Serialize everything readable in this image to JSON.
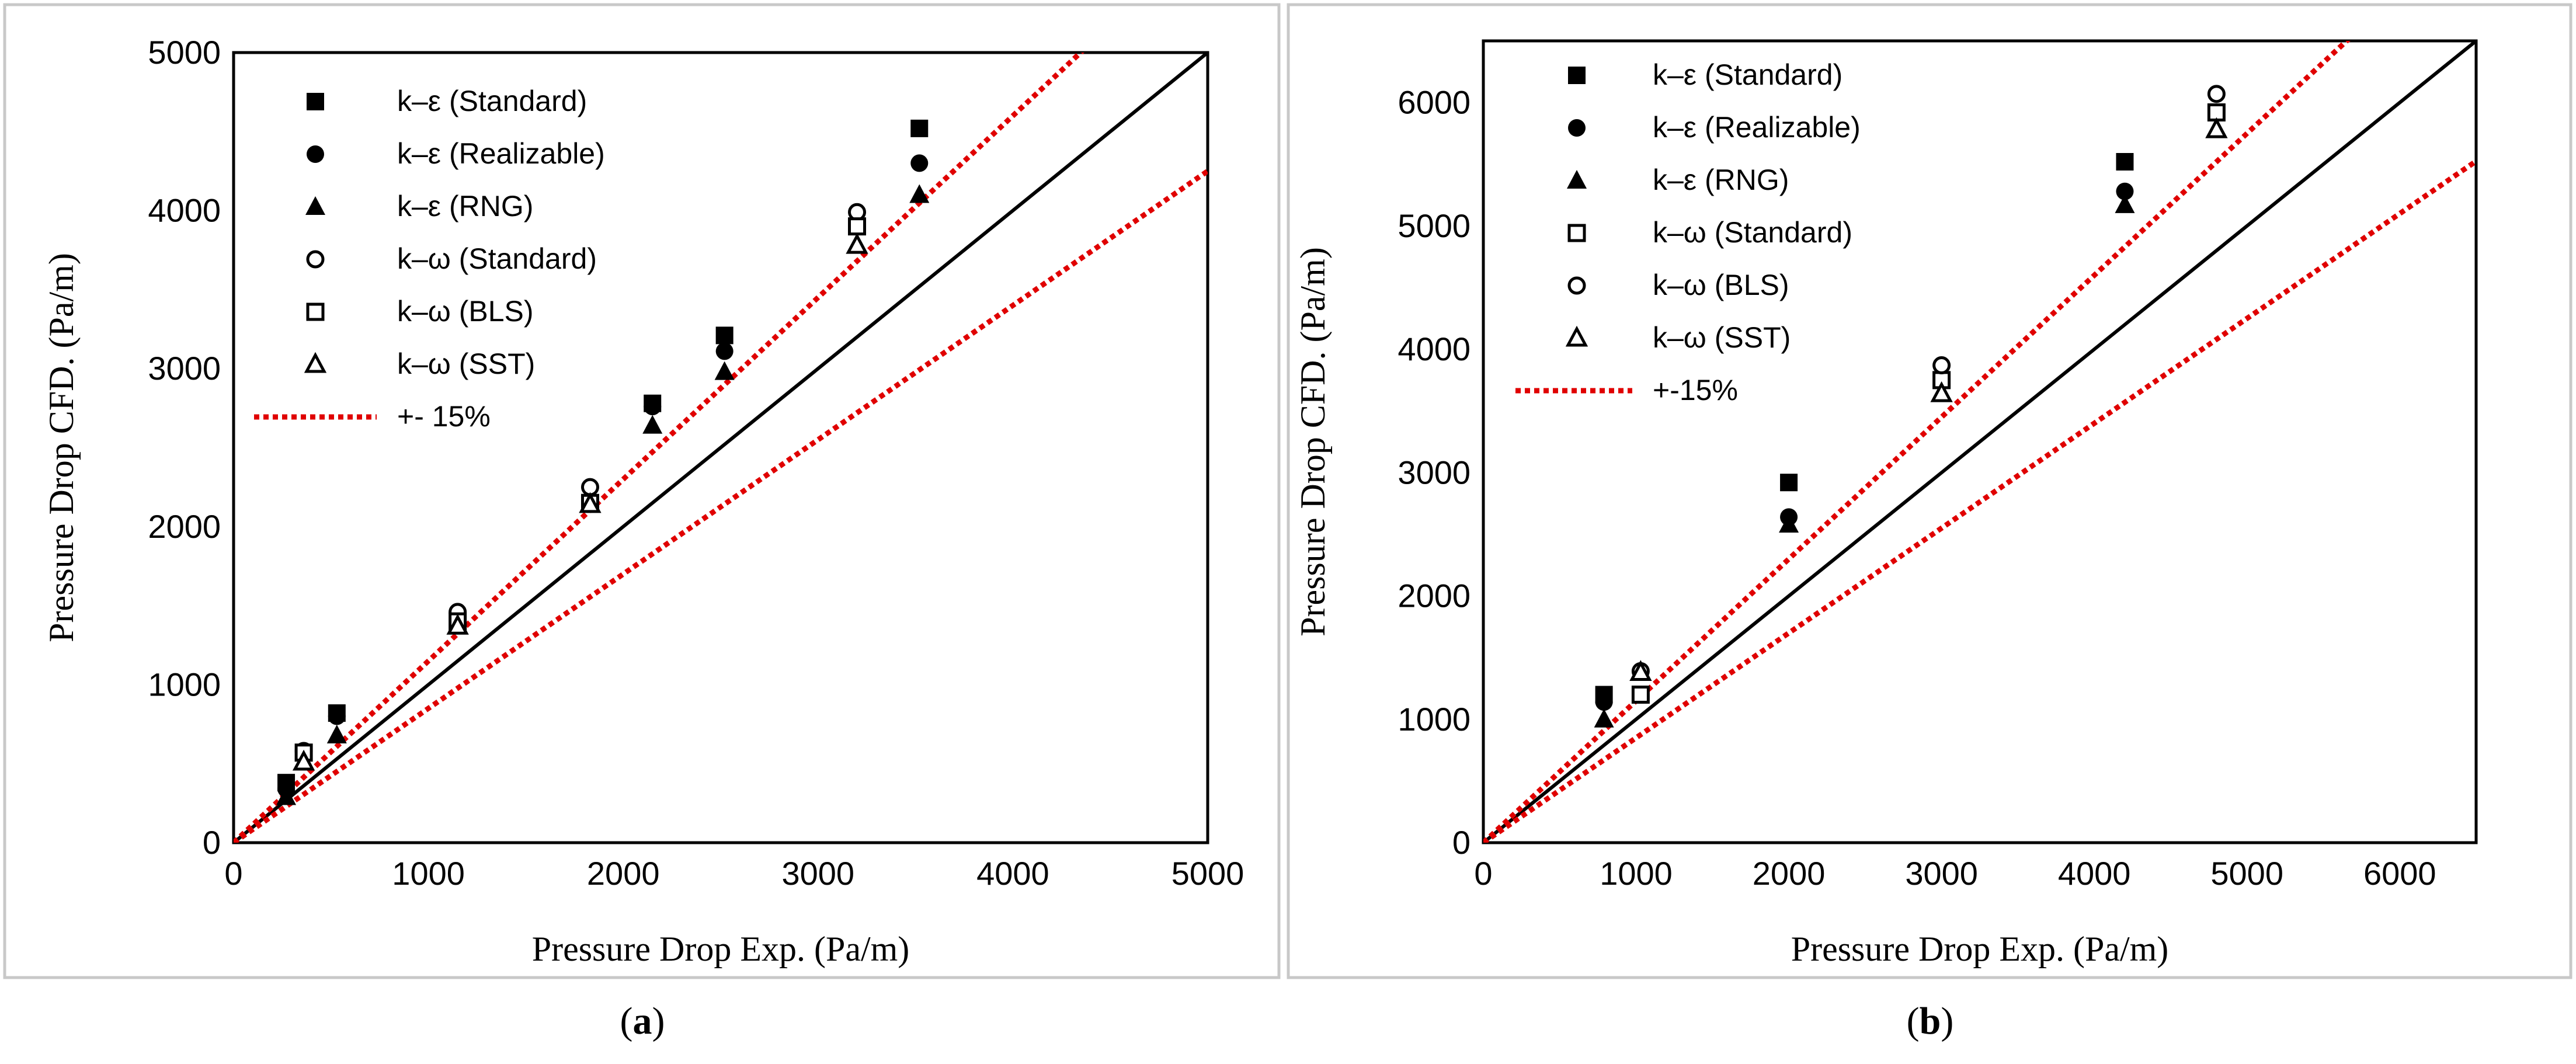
{
  "chart_data": [
    {
      "type": "scatter",
      "panel_label": "a",
      "xlabel": "Pressure Drop Exp.  (Pa/m)",
      "ylabel": "Pressure Drop CFD.  (Pa/m)",
      "xlim": [
        0,
        5000
      ],
      "ylim": [
        0,
        5000
      ],
      "xticks": [
        0,
        1000,
        2000,
        3000,
        4000,
        5000
      ],
      "yticks": [
        0,
        1000,
        2000,
        3000,
        4000,
        5000
      ],
      "legend_position": "top-left",
      "series": [
        {
          "name": "k–ε (Standard)",
          "marker": "square-filled",
          "points": [
            [
              270,
              380
            ],
            [
              530,
              820
            ],
            [
              1150,
              1380
            ],
            [
              1830,
              2150
            ],
            [
              2150,
              2780
            ],
            [
              2520,
              3210
            ],
            [
              3520,
              4520
            ]
          ]
        },
        {
          "name": "k–ε (Realizable)",
          "marker": "circle-filled",
          "points": [
            [
              270,
              340
            ],
            [
              530,
              800
            ],
            [
              1150,
              1400
            ],
            [
              1830,
              2160
            ],
            [
              2150,
              2760
            ],
            [
              2520,
              3110
            ],
            [
              3520,
              4300
            ]
          ]
        },
        {
          "name": "k–ε (RNG)",
          "marker": "triangle-filled",
          "points": [
            [
              270,
              290
            ],
            [
              530,
              680
            ],
            [
              1150,
              1380
            ],
            [
              1830,
              2140
            ],
            [
              2150,
              2640
            ],
            [
              2520,
              2980
            ],
            [
              3520,
              4100
            ]
          ]
        },
        {
          "name": "k–ω (Standard)",
          "marker": "circle-open",
          "points": [
            [
              360,
              580
            ],
            [
              1150,
              1460
            ],
            [
              1830,
              2250
            ],
            [
              3200,
              3990
            ]
          ]
        },
        {
          "name": "k–ω (BLS)",
          "marker": "square-open",
          "points": [
            [
              360,
              570
            ],
            [
              1150,
              1400
            ],
            [
              1830,
              2150
            ],
            [
              3200,
              3900
            ]
          ]
        },
        {
          "name": "k–ω (SST)",
          "marker": "triangle-open",
          "points": [
            [
              360,
              510
            ],
            [
              1150,
              1370
            ],
            [
              1830,
              2140
            ],
            [
              3200,
              3780
            ]
          ]
        }
      ],
      "reference_lines": [
        {
          "name": "y = x",
          "style": "solid",
          "color": "#000000",
          "slope": 1.0
        },
        {
          "name": "+- 15%",
          "style": "dotted",
          "color": "#e00000",
          "slope": 1.15
        },
        {
          "name": "+- 15%",
          "style": "dotted",
          "color": "#e00000",
          "slope": 0.85
        }
      ]
    },
    {
      "type": "scatter",
      "panel_label": "b",
      "xlabel": "Pressure Drop Exp.  (Pa/m)",
      "ylabel": "Pressure Drop CFD.  (Pa/m)",
      "xlim": [
        0,
        6500
      ],
      "ylim": [
        0,
        6500
      ],
      "xticks": [
        0,
        1000,
        2000,
        3000,
        4000,
        5000,
        6000
      ],
      "yticks": [
        0,
        1000,
        2000,
        3000,
        4000,
        5000,
        6000
      ],
      "legend_position": "top-left",
      "series": [
        {
          "name": "k–ε (Standard)",
          "marker": "square-filled",
          "points": [
            [
              790,
              1200
            ],
            [
              2000,
              2920
            ],
            [
              4200,
              5520
            ]
          ]
        },
        {
          "name": "k–ε (Realizable)",
          "marker": "circle-filled",
          "points": [
            [
              790,
              1140
            ],
            [
              2000,
              2640
            ],
            [
              4200,
              5280
            ]
          ]
        },
        {
          "name": "k–ε (RNG)",
          "marker": "triangle-filled",
          "points": [
            [
              790,
              1000
            ],
            [
              2000,
              2580
            ],
            [
              4200,
              5170
            ]
          ]
        },
        {
          "name": "k–ω (Standard)",
          "marker": "square-open",
          "points": [
            [
              1030,
              1200
            ],
            [
              3000,
              3750
            ],
            [
              4800,
              5920
            ]
          ]
        },
        {
          "name": "k–ω (BLS)",
          "marker": "circle-open",
          "points": [
            [
              1030,
              1390
            ],
            [
              3000,
              3870
            ],
            [
              4800,
              6070
            ]
          ]
        },
        {
          "name": "k–ω (SST)",
          "marker": "triangle-open",
          "points": [
            [
              1030,
              1380
            ],
            [
              3000,
              3640
            ],
            [
              4800,
              5780
            ]
          ]
        }
      ],
      "reference_lines": [
        {
          "name": "y = x",
          "style": "solid",
          "color": "#000000",
          "slope": 1.0
        },
        {
          "name": "+-15%",
          "style": "dotted",
          "color": "#e00000",
          "slope": 1.15
        },
        {
          "name": "+-15%",
          "style": "dotted",
          "color": "#e00000",
          "slope": 0.85
        }
      ]
    }
  ],
  "captions": {
    "a": {
      "open": "(",
      "letter": "a",
      "close": ")"
    },
    "b": {
      "open": "(",
      "letter": "b",
      "close": ")"
    }
  }
}
